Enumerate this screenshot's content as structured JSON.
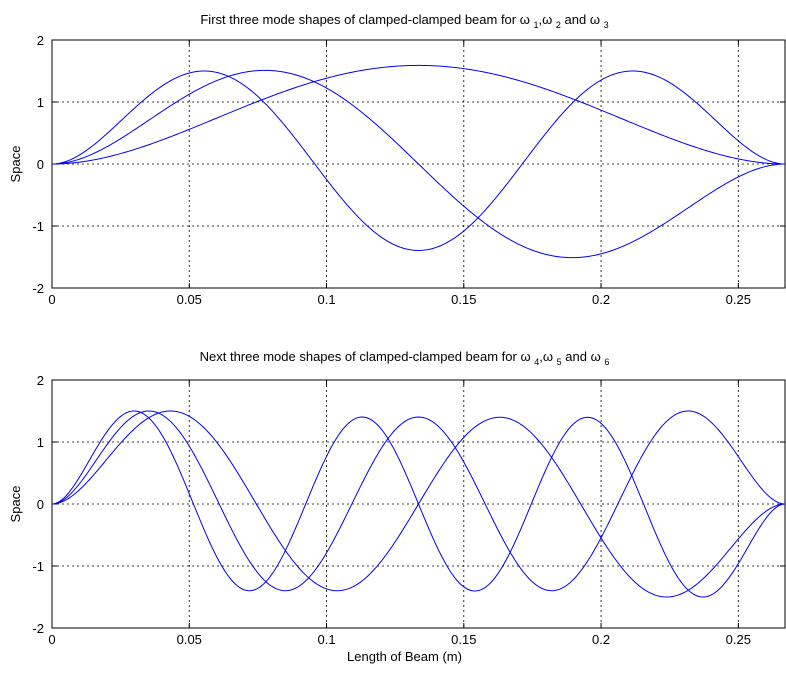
{
  "colors": {
    "series": "#0000ff",
    "axes": "#000000",
    "background": "#ffffff"
  },
  "chart_data": [
    {
      "type": "line",
      "title": "First three mode shapes of clamped-clamped beam for",
      "title_symbols": [
        {
          "symbol": "ω",
          "subscript": "1"
        },
        {
          "symbol": "ω",
          "subscript": "2"
        },
        {
          "symbol": "ω",
          "subscript": "3"
        }
      ],
      "title_joiners": [
        ",",
        " and "
      ],
      "xlabel": "",
      "ylabel": "Space",
      "xlim": [
        0,
        0.267
      ],
      "ylim": [
        -2,
        2
      ],
      "xticks": [
        0,
        0.05,
        0.1,
        0.15,
        0.2,
        0.25
      ],
      "xtick_labels": [
        "0",
        "0.05",
        "0.1",
        "0.15",
        "0.2",
        "0.25"
      ],
      "yticks": [
        2,
        1,
        0,
        -1,
        -2
      ],
      "ytick_labels": [
        "2",
        "1",
        "0",
        "-1",
        "-2"
      ],
      "grid": true,
      "beam_length": 0.267,
      "series": [
        {
          "mode": 1,
          "peak_x": 0.1335,
          "peak_y": 1.59
        },
        {
          "mode": 2,
          "peak_x": 0.0785,
          "peak_y": 1.51,
          "trough_x": 0.1885,
          "trough_y": -1.51
        },
        {
          "mode": 3,
          "peak_x": 0.056,
          "peak_y": 1.5,
          "trough_x": 0.1335,
          "trough_y": -1.41
        }
      ]
    },
    {
      "type": "line",
      "title": "Next three mode shapes of clamped-clamped beam for",
      "title_symbols": [
        {
          "symbol": "ω",
          "subscript": "4"
        },
        {
          "symbol": "ω",
          "subscript": "5"
        },
        {
          "symbol": "ω",
          "subscript": "6"
        }
      ],
      "title_joiners": [
        ",",
        " and "
      ],
      "xlabel": "Length of Beam (m)",
      "ylabel": "Space",
      "xlim": [
        0,
        0.267
      ],
      "ylim": [
        -2,
        2
      ],
      "xticks": [
        0,
        0.05,
        0.1,
        0.15,
        0.2,
        0.25
      ],
      "xtick_labels": [
        "0",
        "0.05",
        "0.1",
        "0.15",
        "0.2",
        "0.25"
      ],
      "yticks": [
        2,
        1,
        0,
        -1,
        -2
      ],
      "ytick_labels": [
        "2",
        "1",
        "0",
        "-1",
        "-2"
      ],
      "grid": true,
      "beam_length": 0.267,
      "series": [
        {
          "mode": 4,
          "peak_x": 0.0435,
          "peak_y": 1.5,
          "trough_x": 0.1045,
          "trough_y": -1.41
        },
        {
          "mode": 5,
          "peak_x": 0.0355,
          "peak_y": 1.5,
          "trough_x": 0.0855,
          "trough_y": -1.41
        },
        {
          "mode": 6,
          "peak_x": 0.03,
          "peak_y": 1.5,
          "trough_x": 0.0725,
          "trough_y": -1.41
        }
      ]
    }
  ]
}
